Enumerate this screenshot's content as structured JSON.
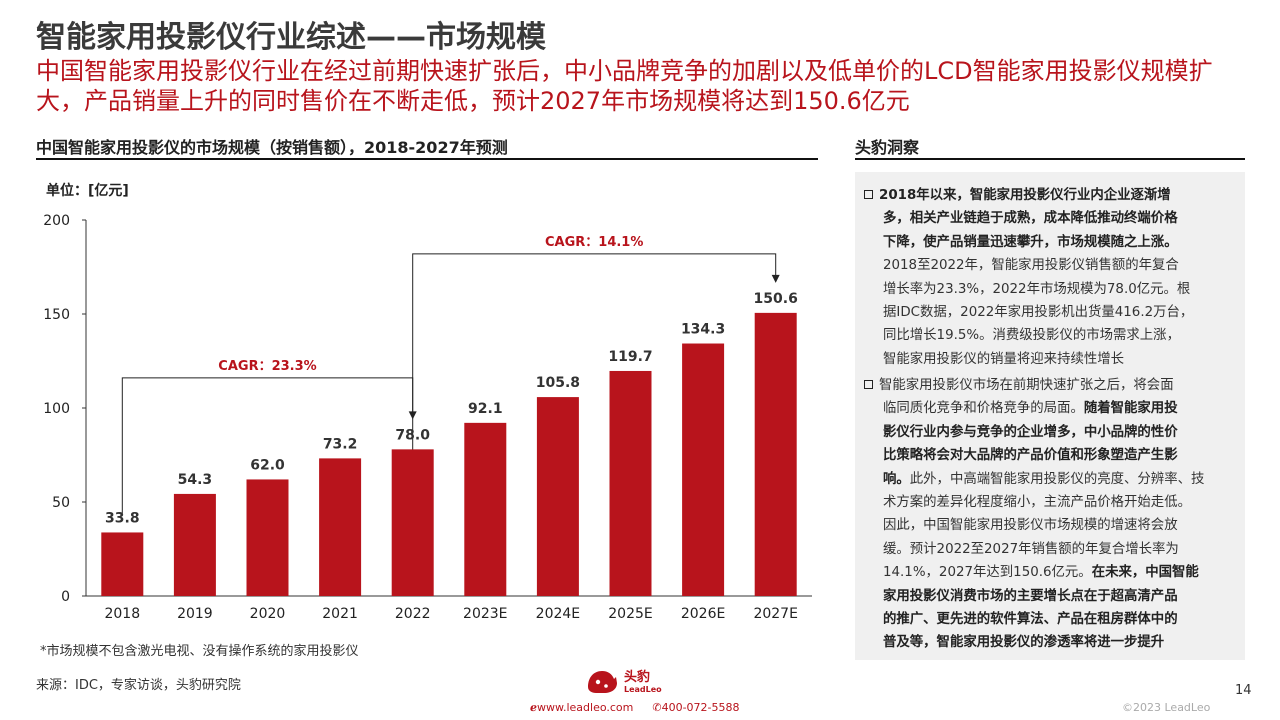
{
  "header": {
    "title": "智能家用投影仪行业综述——市场规模",
    "subtitle": "中国智能家用投影仪行业在经过前期快速扩张后，中小品牌竞争的加剧以及低单价的LCD智能家用投影仪规模扩大，产品销量上升的同时售价在不断走低，预计2027年市场规模将达到150.6亿元"
  },
  "chart": {
    "heading": "中国智能家用投影仪的市场规模（按销售额），2018-2027年预测"
  },
  "chart_data": {
    "type": "bar",
    "title": "中国智能家用投影仪的市场规模（按销售额），2018-2027年预测",
    "unit_label": "单位：[亿元]",
    "categories": [
      "2018",
      "2019",
      "2020",
      "2021",
      "2022",
      "2023E",
      "2024E",
      "2025E",
      "2026E",
      "2027E"
    ],
    "values": [
      33.8,
      54.3,
      62.0,
      73.2,
      78.0,
      92.1,
      105.8,
      119.7,
      134.3,
      150.6
    ],
    "value_labels": [
      "33.8",
      "54.3",
      "62.0",
      "73.2",
      "78.0",
      "92.1",
      "105.8",
      "119.7",
      "134.3",
      "150.6"
    ],
    "ylim": [
      0,
      200
    ],
    "yticks": [
      0,
      50,
      100,
      150,
      200
    ],
    "grid": false,
    "bar_color": "#b8141c",
    "annotations": [
      {
        "text": "CAGR：23.3%",
        "from": "2018",
        "to": "2022"
      },
      {
        "text": "CAGR：14.1%",
        "from": "2022",
        "to": "2027E"
      }
    ]
  },
  "insight": {
    "heading": "头豹洞察",
    "para1_lines": [
      {
        "bold": "2018年以来，智能家用投影仪行业内企业逐渐增",
        "normal": ""
      },
      {
        "bold": "多，相关产业链趋于成熟，成本降低推动终端价格",
        "normal": ""
      },
      {
        "bold": "下降，使产品销量迅速攀升，市场规模随之上涨。",
        "normal": ""
      },
      {
        "bold": "",
        "normal": "2018至2022年，智能家用投影仪销售额的年复合"
      },
      {
        "bold": "",
        "normal": "增长率为23.3%，2022年市场规模为78.0亿元。根"
      },
      {
        "bold": "",
        "normal": "据IDC数据，2022年家用投影机出货量416.2万台，"
      },
      {
        "bold": "",
        "normal": "同比增长19.5%。消费级投影仪的市场需求上涨，"
      },
      {
        "bold": "",
        "normal": "智能家用投影仪的销量将迎来持续性增长"
      }
    ],
    "para2_lines": [
      {
        "normal": "智能家用投影仪市场在前期快速扩张之后，将会面",
        "bold": ""
      },
      {
        "normal": "临同质化竞争和价格竞争的局面。",
        "bold": "随着智能家用投"
      },
      {
        "normal": "",
        "bold": "影仪行业内参与竞争的企业增多，中小品牌的性价"
      },
      {
        "normal": "",
        "bold": "比策略将会对大品牌的产品价值和形象塑造产生影"
      },
      {
        "normal": "此外，中高端智能家用投影仪的亮度、分辨率、技",
        "bold": "响。"
      },
      {
        "normal": "术方案的差异化程度缩小，主流产品价格开始走低。",
        "bold": ""
      },
      {
        "normal": "因此，中国智能家用投影仪市场规模的增速将会放",
        "bold": ""
      },
      {
        "normal": "缓。预计2022至2027年销售额的年复合增长率为",
        "bold": ""
      },
      {
        "normal": "14.1%，2027年达到150.6亿元。",
        "bold": "在未来，中国智能"
      },
      {
        "normal": "",
        "bold": "家用投影仪消费市场的主要增长点在于超高清产品"
      },
      {
        "normal": "",
        "bold": "的推广、更先进的软件算法、产品在租房群体中的"
      },
      {
        "normal": "",
        "bold": "普及等，智能家用投影仪的渗透率将进一步提升"
      }
    ]
  },
  "footer": {
    "note": "*市场规模不包含激光电视、没有操作系统的家用投影仪",
    "source": "来源：IDC，专家访谈，头豹研究院",
    "page_number": "14",
    "copyright": "©2023 LeadLeo",
    "brand_cn": "头豹",
    "brand_en": "LeadLeo",
    "website": "www.leadleo.com",
    "phone": "400-072-5588"
  },
  "icons": [
    "leopard-logo-icon",
    "web-e-icon",
    "phone-icon",
    "checkbox-bullet-icon"
  ]
}
